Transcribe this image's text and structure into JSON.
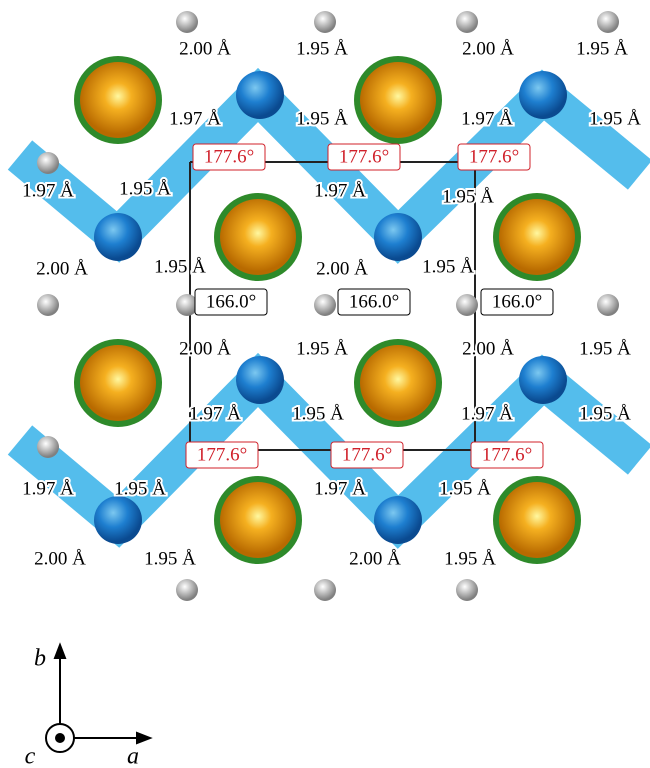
{
  "bond_labels": [
    "2.00 Å",
    "1.95 Å",
    "2.00 Å",
    "1.95 Å",
    "1.97 Å",
    "1.95 Å",
    "1.97 Å",
    "1.95 Å",
    "1.97 Å",
    "1.95 Å",
    "1.97 Å",
    "1.95 Å",
    "2.00 Å",
    "1.95 Å",
    "2.00 Å",
    "1.95 Å",
    "2.00 Å",
    "1.95 Å",
    "2.00 Å",
    "1.95 Å",
    "1.97 Å",
    "1.95 Å",
    "1.97 Å",
    "1.95 Å",
    "1.97 Å",
    "1.95 Å",
    "1.97 Å",
    "1.95 Å",
    "2.00 Å",
    "1.95 Å",
    "2.00 Å",
    "1.95 Å"
  ],
  "angle_labels": [
    "177.6°",
    "177.6°",
    "177.6°",
    "166.0°",
    "166.0°",
    "166.0°",
    "177.6°",
    "177.6°",
    "177.6°"
  ],
  "axes": {
    "a": "a",
    "b": "b",
    "c": "c"
  }
}
